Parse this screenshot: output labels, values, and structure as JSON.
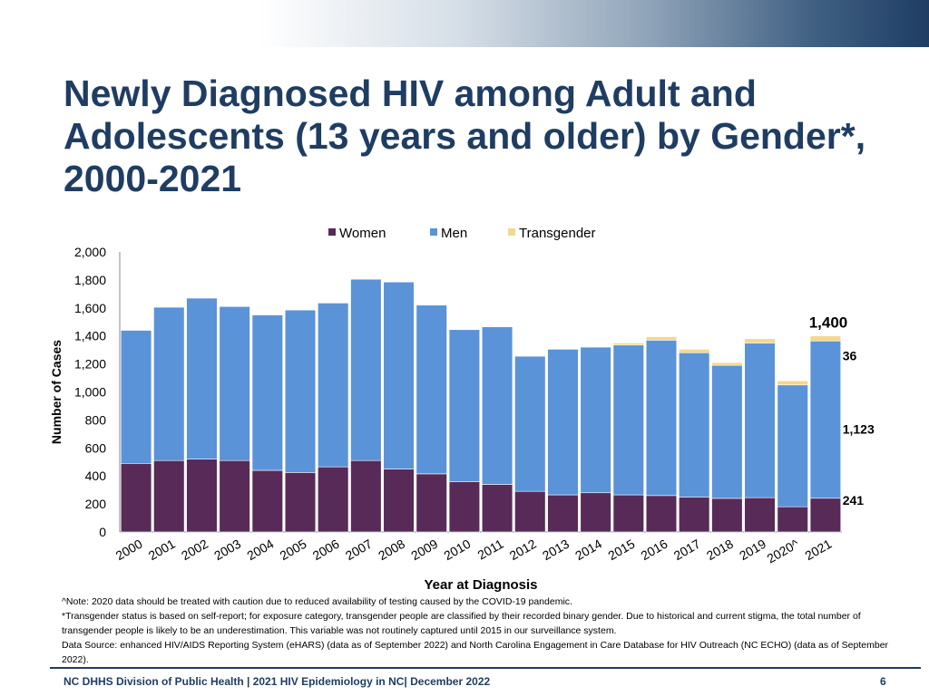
{
  "slide": {
    "title": "Newly Diagnosed HIV among Adult and Adolescents (13 years and older) by Gender*, 2000-2021",
    "notes": [
      "^Note: 2020 data should be treated with caution due to reduced availability of testing caused by the COVID-19 pandemic.",
      "*Transgender status is based on self-report; for exposure category, transgender people are classified by their recorded binary gender. Due to historical and current stigma, the total number of transgender people is likely to be an underestimation. This variable was not routinely captured until 2015 in our surveillance system.",
      "Data Source: enhanced HIV/AIDS Reporting System (eHARS) (data as of September 2022) and North Carolina Engagement in Care Database for HIV Outreach (NC ECHO) (data as of September 2022)."
    ],
    "footer": "NC DHHS Division of Public Health | 2021 HIV Epidemiology in NC| December 2022",
    "page_number": "6"
  },
  "chart_data": {
    "type": "bar",
    "stacked": true,
    "categories": [
      "2000",
      "2001",
      "2002",
      "2003",
      "2004",
      "2005",
      "2006",
      "2007",
      "2008",
      "2009",
      "2010",
      "2011",
      "2012",
      "2013",
      "2014",
      "2015",
      "2016",
      "2017",
      "2018",
      "2019",
      "2020^",
      "2021"
    ],
    "series": [
      {
        "name": "Women",
        "color": "#582a57",
        "values": [
          490,
          510,
          520,
          510,
          440,
          425,
          465,
          510,
          450,
          415,
          360,
          340,
          290,
          265,
          280,
          265,
          260,
          250,
          240,
          245,
          180,
          241
        ]
      },
      {
        "name": "Men",
        "color": "#5a93d8",
        "values": [
          950,
          1095,
          1150,
          1100,
          1110,
          1160,
          1170,
          1295,
          1335,
          1205,
          1085,
          1125,
          965,
          1040,
          1040,
          1070,
          1110,
          1030,
          950,
          1105,
          870,
          1123
        ]
      },
      {
        "name": "Transgender",
        "color": "#f5d78e",
        "values": [
          0,
          0,
          0,
          0,
          0,
          0,
          0,
          0,
          0,
          0,
          0,
          0,
          0,
          0,
          0,
          15,
          25,
          25,
          20,
          30,
          30,
          36
        ]
      }
    ],
    "title": "",
    "xlabel": "Year at Diagnosis",
    "ylabel": "Number of Cases",
    "ylim": [
      0,
      2000
    ],
    "yticks": [
      0,
      200,
      400,
      600,
      800,
      1000,
      1200,
      1400,
      1600,
      1800,
      2000
    ],
    "ytick_labels": [
      "0",
      "200",
      "400",
      "600",
      "800",
      "1,000",
      "1,200",
      "1,400",
      "1,600",
      "1,800",
      "2,000"
    ],
    "legend_position": "top-center",
    "annotations": {
      "total": "1,400",
      "transgender": "36",
      "men": "1,123",
      "women": "241"
    }
  }
}
